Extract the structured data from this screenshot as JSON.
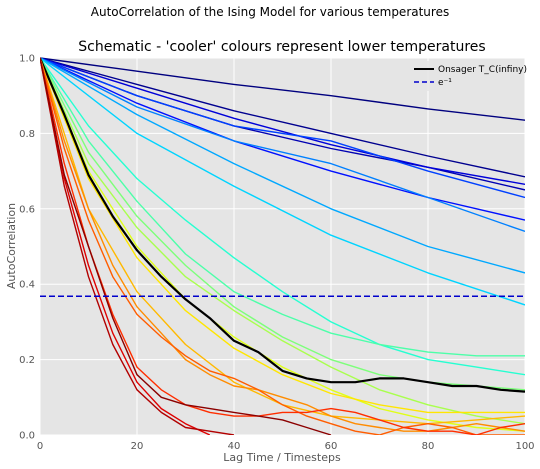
{
  "figure": {
    "suptitle": "AutoCorrelation of the Ising Model for various temperatures"
  },
  "chart_data": {
    "type": "line",
    "title": "Schematic - 'cooler' colours represent lower temperatures",
    "xlabel": "Lag Time / Timesteps",
    "ylabel": "AutoCorrelation",
    "xlim": [
      0,
      100
    ],
    "ylim": [
      0,
      1.0
    ],
    "xticks": [
      "0",
      "20",
      "40",
      "60",
      "80",
      "100"
    ],
    "yticks": [
      "0.0",
      "0.2",
      "0.4",
      "0.6",
      "0.8",
      "1.0"
    ],
    "grid": true,
    "legend_position": "top-right",
    "legend": [
      {
        "label": "Onsager T_C(infiny)",
        "style": "solid",
        "color": "#000000"
      },
      {
        "label": "e⁻¹",
        "style": "dashed",
        "color": "#0000cc"
      }
    ],
    "reference_line": {
      "name": "e⁻¹",
      "y": 0.368,
      "color": "#0000cc",
      "style": "dashed"
    },
    "series": [
      {
        "color": "#00007f",
        "x": [
          0,
          20,
          40,
          60,
          80,
          100
        ],
        "y": [
          1.0,
          0.965,
          0.93,
          0.9,
          0.865,
          0.835
        ]
      },
      {
        "color": "#00008f",
        "x": [
          0,
          20,
          40,
          60,
          80,
          100
        ],
        "y": [
          1.0,
          0.93,
          0.86,
          0.8,
          0.74,
          0.685
        ]
      },
      {
        "color": "#0000b2",
        "x": [
          0,
          20,
          40,
          60,
          80,
          100
        ],
        "y": [
          1.0,
          0.9,
          0.82,
          0.76,
          0.71,
          0.65
        ]
      },
      {
        "color": "#0000d9",
        "x": [
          0,
          20,
          40,
          60,
          80,
          100
        ],
        "y": [
          1.0,
          0.92,
          0.84,
          0.77,
          0.71,
          0.665
        ]
      },
      {
        "color": "#0010ff",
        "x": [
          0,
          20,
          40,
          60,
          80,
          100
        ],
        "y": [
          1.0,
          0.88,
          0.78,
          0.7,
          0.63,
          0.57
        ]
      },
      {
        "color": "#0040ff",
        "x": [
          0,
          20,
          40,
          60,
          80,
          100
        ],
        "y": [
          1.0,
          0.9,
          0.82,
          0.78,
          0.7,
          0.63
        ]
      },
      {
        "color": "#0080ff",
        "x": [
          0,
          20,
          40,
          60,
          80,
          100
        ],
        "y": [
          1.0,
          0.87,
          0.78,
          0.72,
          0.63,
          0.54
        ]
      },
      {
        "color": "#00a8ff",
        "x": [
          0,
          20,
          40,
          60,
          80,
          100
        ],
        "y": [
          1.0,
          0.85,
          0.72,
          0.6,
          0.5,
          0.43
        ]
      },
      {
        "color": "#00d4ff",
        "x": [
          0,
          20,
          40,
          60,
          80,
          100
        ],
        "y": [
          1.0,
          0.8,
          0.66,
          0.53,
          0.43,
          0.345
        ]
      },
      {
        "color": "#26ffd1",
        "x": [
          0,
          10,
          20,
          30,
          40,
          50,
          60,
          70,
          80,
          90,
          100
        ],
        "y": [
          1.0,
          0.82,
          0.68,
          0.57,
          0.47,
          0.38,
          0.3,
          0.24,
          0.2,
          0.18,
          0.16
        ]
      },
      {
        "color": "#4dffa9",
        "x": [
          0,
          10,
          20,
          30,
          40,
          50,
          60,
          70,
          80,
          90,
          100
        ],
        "y": [
          1.0,
          0.78,
          0.62,
          0.48,
          0.38,
          0.32,
          0.27,
          0.24,
          0.22,
          0.21,
          0.21
        ]
      },
      {
        "color": "#7dff7a",
        "x": [
          0,
          10,
          20,
          30,
          40,
          50,
          60,
          70,
          80,
          90,
          100
        ],
        "y": [
          1.0,
          0.75,
          0.58,
          0.45,
          0.34,
          0.26,
          0.2,
          0.16,
          0.14,
          0.13,
          0.12
        ]
      },
      {
        "color": "#a9ff4d",
        "x": [
          0,
          10,
          20,
          30,
          40,
          50,
          60,
          70,
          80,
          90,
          100
        ],
        "y": [
          1.0,
          0.72,
          0.55,
          0.42,
          0.33,
          0.25,
          0.18,
          0.12,
          0.08,
          0.05,
          0.03
        ]
      },
      {
        "color": "#e0ff17",
        "x": [
          0,
          10,
          20,
          30,
          40,
          50,
          60,
          70,
          80,
          90,
          100
        ],
        "y": [
          1.0,
          0.7,
          0.5,
          0.36,
          0.26,
          0.18,
          0.12,
          0.07,
          0.04,
          0.02,
          0.01
        ]
      },
      {
        "color": "#ffe600",
        "x": [
          0,
          10,
          20,
          30,
          40,
          50,
          60,
          70,
          80,
          90,
          100
        ],
        "y": [
          1.0,
          0.68,
          0.47,
          0.33,
          0.23,
          0.16,
          0.11,
          0.08,
          0.06,
          0.06,
          0.06
        ]
      },
      {
        "color": "#000000",
        "x": [
          0,
          5,
          10,
          15,
          20,
          25,
          30,
          35,
          40,
          45,
          50,
          55,
          60,
          65,
          70,
          75,
          80,
          85,
          90,
          95,
          100
        ],
        "y": [
          1.0,
          0.85,
          0.69,
          0.58,
          0.49,
          0.42,
          0.36,
          0.31,
          0.25,
          0.22,
          0.17,
          0.15,
          0.14,
          0.14,
          0.15,
          0.15,
          0.14,
          0.13,
          0.13,
          0.12,
          0.115
        ]
      },
      {
        "color": "#ffb900",
        "x": [
          0,
          10,
          20,
          30,
          40,
          50,
          60,
          70,
          80,
          90,
          100
        ],
        "y": [
          1.0,
          0.6,
          0.38,
          0.24,
          0.14,
          0.08,
          0.05,
          0.04,
          0.03,
          0.04,
          0.05
        ]
      },
      {
        "color": "#ff8c00",
        "x": [
          0,
          5,
          10,
          15,
          20,
          25,
          30,
          35,
          40,
          45,
          50,
          55,
          60,
          65,
          70,
          75,
          80,
          85,
          90,
          95,
          100
        ],
        "y": [
          1.0,
          0.78,
          0.6,
          0.45,
          0.34,
          0.27,
          0.2,
          0.16,
          0.13,
          0.12,
          0.1,
          0.08,
          0.05,
          0.03,
          0.02,
          0.01,
          0.01,
          0.02,
          0.03,
          0.02,
          0.01
        ]
      },
      {
        "color": "#ff5d00",
        "x": [
          0,
          5,
          10,
          15,
          20,
          25,
          30,
          35,
          40,
          45,
          50,
          55,
          60,
          65,
          70,
          75,
          80,
          85,
          90,
          95,
          100
        ],
        "y": [
          1.0,
          0.76,
          0.57,
          0.42,
          0.32,
          0.26,
          0.21,
          0.17,
          0.15,
          0.12,
          0.08,
          0.05,
          0.03,
          0.01,
          0.0,
          0.02,
          0.03,
          0.02,
          0.0,
          0.0,
          0.0
        ]
      },
      {
        "color": "#ff2e00",
        "x": [
          0,
          5,
          10,
          15,
          20,
          25,
          30,
          35,
          40,
          45,
          50,
          55,
          60,
          65,
          70,
          75,
          80,
          85,
          90,
          95,
          100
        ],
        "y": [
          1.0,
          0.72,
          0.5,
          0.32,
          0.18,
          0.12,
          0.08,
          0.06,
          0.05,
          0.05,
          0.06,
          0.06,
          0.07,
          0.06,
          0.04,
          0.02,
          0.01,
          0.01,
          0.0,
          0.02,
          0.03
        ]
      },
      {
        "color": "#df0000",
        "x": [
          0,
          5,
          10,
          15,
          20,
          25,
          30,
          35
        ],
        "y": [
          1.0,
          0.68,
          0.45,
          0.27,
          0.14,
          0.07,
          0.03,
          0.0
        ]
      },
      {
        "color": "#b20000",
        "x": [
          0,
          5,
          10,
          15,
          20,
          25,
          30,
          35,
          40
        ],
        "y": [
          1.0,
          0.66,
          0.42,
          0.24,
          0.12,
          0.06,
          0.02,
          0.01,
          0.0
        ]
      },
      {
        "color": "#8b0000",
        "x": [
          0,
          5,
          10,
          15,
          20,
          25,
          30,
          35,
          40,
          45,
          50,
          55,
          60
        ],
        "y": [
          1.0,
          0.69,
          0.5,
          0.31,
          0.16,
          0.1,
          0.08,
          0.07,
          0.06,
          0.05,
          0.04,
          0.02,
          0.0
        ]
      }
    ]
  }
}
